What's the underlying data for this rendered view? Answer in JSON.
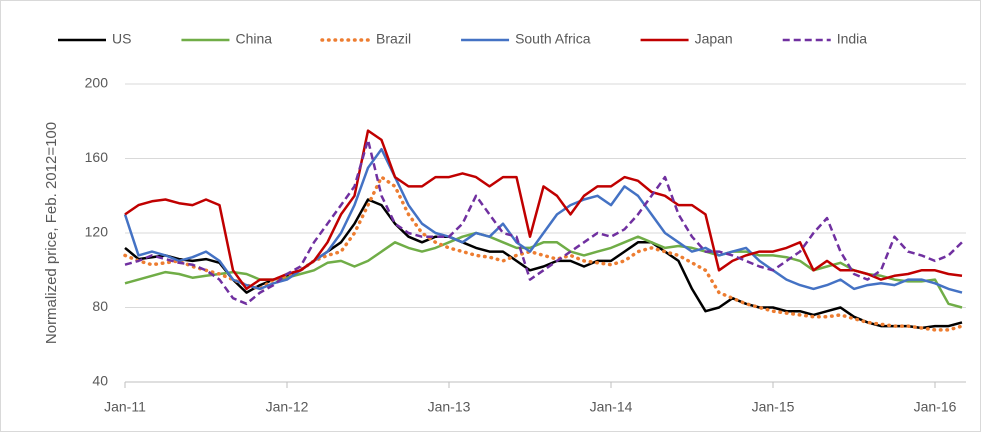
{
  "chart_data": {
    "type": "line",
    "ylabel": "Normalized price,  Feb. 2012=100",
    "categories": [
      "Jan-11",
      null,
      null,
      null,
      null,
      null,
      null,
      null,
      null,
      null,
      null,
      null,
      "Jan-12",
      null,
      null,
      null,
      null,
      null,
      null,
      null,
      null,
      null,
      null,
      null,
      "Jan-13",
      null,
      null,
      null,
      null,
      null,
      null,
      null,
      null,
      null,
      null,
      null,
      "Jan-14",
      null,
      null,
      null,
      null,
      null,
      null,
      null,
      null,
      null,
      null,
      null,
      "Jan-15",
      null,
      null,
      null,
      null,
      null,
      null,
      null,
      null,
      null,
      null,
      null,
      "Jan-16",
      null,
      null
    ],
    "ylim": [
      40,
      200
    ],
    "yticks": [
      40,
      80,
      120,
      160,
      200
    ],
    "grid": true,
    "legend": "top",
    "series": [
      {
        "name": "US",
        "color": "#000000",
        "style": "solid",
        "values": [
          112,
          106,
          107,
          108,
          106,
          105,
          106,
          104,
          95,
          88,
          92,
          95,
          97,
          100,
          105,
          110,
          115,
          125,
          138,
          135,
          125,
          118,
          115,
          118,
          118,
          115,
          112,
          110,
          110,
          105,
          100,
          102,
          105,
          105,
          102,
          105,
          105,
          110,
          115,
          115,
          110,
          105,
          90,
          78,
          80,
          85,
          82,
          80,
          80,
          78,
          78,
          76,
          78,
          80,
          75,
          72,
          70,
          70,
          70,
          69,
          70,
          70,
          72
        ]
      },
      {
        "name": "China",
        "color": "#70ad47",
        "style": "solid",
        "values": [
          93,
          95,
          97,
          99,
          98,
          96,
          97,
          98,
          99,
          98,
          95,
          95,
          96,
          98,
          100,
          104,
          105,
          102,
          105,
          110,
          115,
          112,
          110,
          112,
          115,
          118,
          120,
          118,
          115,
          112,
          112,
          115,
          115,
          110,
          108,
          110,
          112,
          115,
          118,
          115,
          112,
          113,
          112,
          110,
          108,
          110,
          110,
          108,
          108,
          107,
          105,
          100,
          102,
          104,
          100,
          98,
          97,
          95,
          94,
          94,
          95,
          82,
          80
        ]
      },
      {
        "name": "Brazil",
        "color": "#ed7d31",
        "style": "dotted",
        "values": [
          108,
          105,
          103,
          104,
          105,
          102,
          100,
          98,
          95,
          92,
          90,
          95,
          97,
          100,
          105,
          108,
          110,
          120,
          135,
          150,
          145,
          130,
          120,
          115,
          112,
          110,
          108,
          107,
          105,
          108,
          110,
          108,
          106,
          108,
          105,
          104,
          103,
          105,
          110,
          112,
          110,
          108,
          104,
          100,
          88,
          85,
          82,
          80,
          78,
          77,
          76,
          75,
          75,
          76,
          74,
          72,
          71,
          70,
          70,
          69,
          68,
          68,
          70
        ]
      },
      {
        "name": "South Africa",
        "color": "#4472c4",
        "style": "solid",
        "values": [
          130,
          108,
          110,
          108,
          105,
          107,
          110,
          105,
          95,
          92,
          90,
          93,
          95,
          100,
          105,
          110,
          120,
          135,
          155,
          165,
          150,
          135,
          125,
          120,
          118,
          115,
          120,
          118,
          125,
          115,
          110,
          120,
          130,
          135,
          138,
          140,
          135,
          145,
          140,
          130,
          120,
          115,
          110,
          112,
          108,
          110,
          112,
          105,
          100,
          95,
          92,
          90,
          92,
          95,
          90,
          92,
          93,
          92,
          95,
          95,
          93,
          90,
          88
        ]
      },
      {
        "name": "Japan",
        "color": "#c00000",
        "style": "solid",
        "values": [
          130,
          135,
          137,
          138,
          136,
          135,
          138,
          135,
          100,
          90,
          95,
          95,
          98,
          100,
          105,
          115,
          130,
          140,
          175,
          170,
          150,
          145,
          145,
          150,
          150,
          152,
          150,
          145,
          150,
          150,
          118,
          145,
          140,
          130,
          140,
          145,
          145,
          150,
          148,
          142,
          140,
          135,
          135,
          130,
          100,
          105,
          108,
          110,
          110,
          112,
          115,
          100,
          105,
          100,
          100,
          98,
          95,
          97,
          98,
          100,
          100,
          98,
          97
        ]
      },
      {
        "name": "India",
        "color": "#7030a0",
        "style": "dashed",
        "values": [
          103,
          105,
          108,
          106,
          104,
          103,
          100,
          95,
          85,
          82,
          88,
          92,
          98,
          102,
          115,
          125,
          135,
          145,
          170,
          140,
          125,
          120,
          118,
          118,
          118,
          125,
          140,
          130,
          120,
          118,
          95,
          100,
          105,
          110,
          115,
          120,
          118,
          122,
          130,
          140,
          150,
          130,
          118,
          110,
          110,
          108,
          105,
          102,
          100,
          105,
          110,
          120,
          128,
          110,
          98,
          95,
          100,
          118,
          110,
          108,
          105,
          108,
          115
        ]
      }
    ]
  }
}
